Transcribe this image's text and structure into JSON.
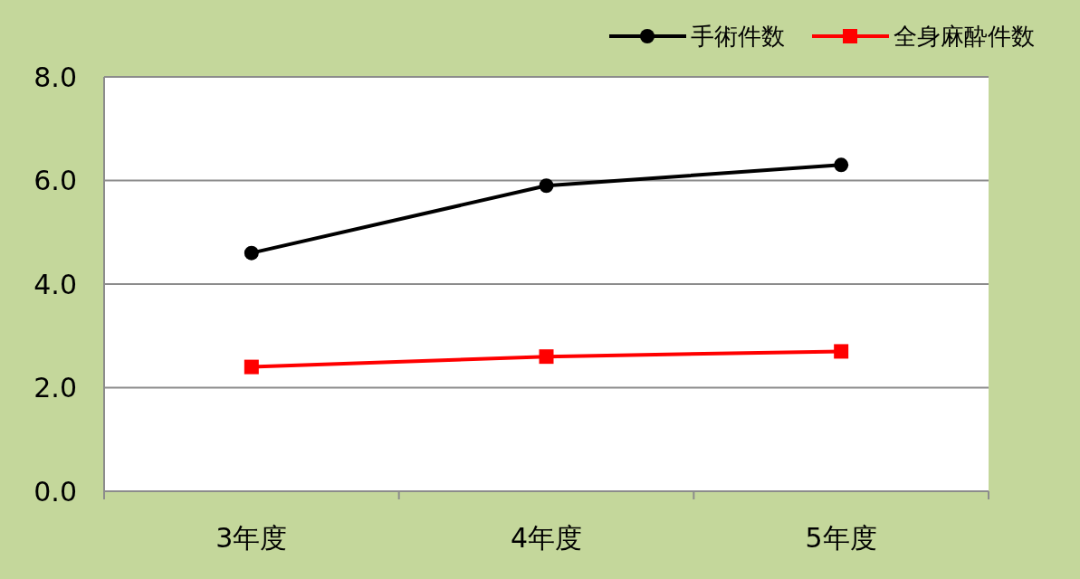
{
  "chart_data": {
    "type": "line",
    "categories": [
      "3年度",
      "4年度",
      "5年度"
    ],
    "series": [
      {
        "name": "手術件数",
        "color": "#000000",
        "values": [
          4.6,
          5.9,
          6.3
        ],
        "marker": "circle"
      },
      {
        "name": "全身麻酔件数",
        "color": "#ff0000",
        "values": [
          2.4,
          2.6,
          2.7
        ],
        "marker": "square"
      }
    ],
    "ylim": [
      0,
      8
    ],
    "yticks": [
      {
        "value": 0,
        "label": "0.0"
      },
      {
        "value": 2,
        "label": "2.0"
      },
      {
        "value": 4,
        "label": "4.0"
      },
      {
        "value": 6,
        "label": "6.0"
      },
      {
        "value": 8,
        "label": "8.0"
      }
    ],
    "grid": "y",
    "legend": "top right",
    "line_style": "solid"
  }
}
